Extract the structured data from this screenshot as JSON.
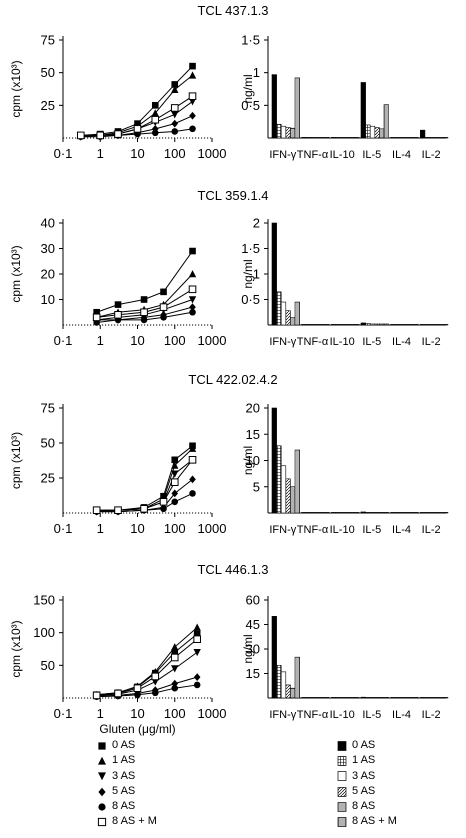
{
  "chart_data": [
    {
      "type": "line",
      "title": "TCL 437.1.3",
      "ylabel": "cpm (x10³)",
      "xlabel": "",
      "xscale": "log",
      "x": [
        0.3,
        1,
        3,
        10,
        30,
        100,
        300
      ],
      "yticks": [
        {
          "v": 25,
          "label": ""
        },
        {
          "v": 50,
          "label": "50"
        },
        {
          "v": 75,
          "label": "75"
        }
      ],
      "ylim": [
        0,
        75
      ],
      "ytick_labels": [
        "75",
        "50",
        "25"
      ],
      "xtick_labels": [
        "0·1",
        "1",
        "10",
        "100",
        "1000"
      ],
      "series": [
        {
          "name": "0 AS",
          "marker": "filled-square",
          "values": [
            2,
            3,
            5,
            11,
            25,
            41,
            55
          ]
        },
        {
          "name": "1 AS",
          "marker": "filled-triangle-up",
          "values": [
            2,
            2,
            4,
            9,
            19,
            37,
            48
          ]
        },
        {
          "name": "3 AS",
          "marker": "filled-triangle-down",
          "values": [
            2,
            2,
            3,
            7,
            12,
            18,
            28
          ]
        },
        {
          "name": "5 AS",
          "marker": "filled-diamond",
          "values": [
            1,
            2,
            2,
            4,
            7,
            11,
            17
          ]
        },
        {
          "name": "8 AS",
          "marker": "filled-circle",
          "values": [
            1,
            1,
            2,
            3,
            4,
            5,
            7
          ]
        },
        {
          "name": "8 AS + M",
          "marker": "open-square",
          "values": [
            2,
            2,
            3,
            7,
            14,
            23,
            32
          ]
        }
      ]
    },
    {
      "type": "bar",
      "title": "",
      "ylabel": "ng/ml",
      "xlabel": "",
      "ylim": [
        0,
        1.5
      ],
      "ytick_labels": [
        "1·5",
        "1",
        "0·5"
      ],
      "yticks": [
        {
          "v": 0.5,
          "label": "0·5"
        },
        {
          "v": 1,
          "label": "1"
        },
        {
          "v": 1.5,
          "label": "1·5"
        }
      ],
      "categories": [
        "IFN-γ",
        "TNF-α",
        "IL-10",
        "IL-5",
        "IL-4",
        "IL-2"
      ],
      "series": [
        {
          "name": "0 AS",
          "pattern": "solid",
          "values": [
            0.97,
            0.01,
            0.01,
            0.85,
            0.0,
            0.12
          ]
        },
        {
          "name": "1 AS",
          "pattern": "grid",
          "values": [
            0.21,
            0.01,
            0.01,
            0.2,
            0.0,
            0.0
          ]
        },
        {
          "name": "3 AS",
          "pattern": "open",
          "values": [
            0.18,
            0.0,
            0.0,
            0.18,
            0.0,
            0.0
          ]
        },
        {
          "name": "5 AS",
          "pattern": "diagonal",
          "values": [
            0.16,
            0.0,
            0.0,
            0.16,
            0.0,
            0.0
          ]
        },
        {
          "name": "8 AS",
          "pattern": "horizontal",
          "values": [
            0.15,
            0.0,
            0.0,
            0.14,
            0.0,
            0.0
          ]
        },
        {
          "name": "8 AS + M",
          "pattern": "vertical",
          "values": [
            0.92,
            0.01,
            0.0,
            0.51,
            0.0,
            0.0
          ]
        }
      ]
    },
    {
      "type": "line",
      "title": "TCL 359.1.4",
      "ylabel": "cpm (x10³)",
      "xlabel": "",
      "xscale": "log",
      "x": [
        0.8,
        3,
        15,
        50,
        300
      ],
      "yticks": [
        {
          "v": 10,
          "label": "10"
        },
        {
          "v": 20,
          "label": "20"
        },
        {
          "v": 30,
          "label": "30"
        },
        {
          "v": 40,
          "label": "40"
        }
      ],
      "ylim": [
        0,
        40
      ],
      "ytick_labels": [
        "40",
        "30",
        "20",
        "10"
      ],
      "xtick_labels": [
        "0·1",
        "1",
        "10",
        "100",
        "1000"
      ],
      "series": [
        {
          "name": "0 AS",
          "marker": "filled-square",
          "values": [
            5,
            8,
            10,
            13,
            29
          ]
        },
        {
          "name": "1 AS",
          "marker": "filled-triangle-up",
          "values": [
            3,
            5,
            6,
            8,
            20
          ]
        },
        {
          "name": "3 AS",
          "marker": "filled-triangle-down",
          "values": [
            2,
            3,
            4,
            6,
            10
          ]
        },
        {
          "name": "5 AS",
          "marker": "filled-diamond",
          "values": [
            2,
            2,
            3,
            4,
            7
          ]
        },
        {
          "name": "8 AS",
          "marker": "filled-circle",
          "values": [
            1,
            2,
            2,
            3,
            5
          ]
        },
        {
          "name": "8 AS + M",
          "marker": "open-square",
          "values": [
            3,
            4,
            5,
            7,
            14
          ]
        }
      ]
    },
    {
      "type": "bar",
      "title": "",
      "ylabel": "ng/ml",
      "xlabel": "",
      "ylim": [
        0,
        2.0
      ],
      "ytick_labels": [
        "2",
        "1·5",
        "1",
        "0·5"
      ],
      "yticks": [
        {
          "v": 0.5,
          "label": "0·5"
        },
        {
          "v": 1,
          "label": "1"
        },
        {
          "v": 1.5,
          "label": "1·5"
        },
        {
          "v": 2,
          "label": "2"
        }
      ],
      "categories": [
        "IFN-γ",
        "TNF-α",
        "IL-10",
        "IL-5",
        "IL-4",
        "IL-2"
      ],
      "series": [
        {
          "name": "0 AS",
          "pattern": "solid",
          "values": [
            2.0,
            0.01,
            0.01,
            0.04,
            0.0,
            0.0
          ]
        },
        {
          "name": "1 AS",
          "pattern": "grid",
          "values": [
            0.65,
            0.0,
            0.0,
            0.03,
            0.0,
            0.0
          ]
        },
        {
          "name": "3 AS",
          "pattern": "open",
          "values": [
            0.45,
            0.0,
            0.0,
            0.02,
            0.0,
            0.0
          ]
        },
        {
          "name": "5 AS",
          "pattern": "diagonal",
          "values": [
            0.28,
            0.0,
            0.0,
            0.02,
            0.0,
            0.0
          ]
        },
        {
          "name": "8 AS",
          "pattern": "horizontal",
          "values": [
            0.15,
            0.0,
            0.0,
            0.02,
            0.0,
            0.0
          ]
        },
        {
          "name": "8 AS + M",
          "pattern": "vertical",
          "values": [
            0.45,
            0.0,
            0.0,
            0.02,
            0.0,
            0.0
          ]
        }
      ]
    },
    {
      "type": "line",
      "title": "TCL 422.02.4.2",
      "ylabel": "cpm (x10³)",
      "xlabel": "",
      "xscale": "log",
      "x": [
        0.8,
        3,
        15,
        50,
        100,
        300
      ],
      "yticks": [
        {
          "v": 25,
          "label": "25"
        },
        {
          "v": 50,
          "label": "50"
        },
        {
          "v": 75,
          "label": "75"
        }
      ],
      "ylim": [
        0,
        75
      ],
      "ytick_labels": [
        "75",
        "50",
        "25"
      ],
      "xtick_labels": [
        "0·1",
        "1",
        "10",
        "100",
        "1000"
      ],
      "series": [
        {
          "name": "0 AS",
          "marker": "filled-square",
          "values": [
            2,
            2,
            4,
            12,
            38,
            48
          ]
        },
        {
          "name": "1 AS",
          "marker": "filled-triangle-up",
          "values": [
            2,
            2,
            3,
            10,
            34,
            46
          ]
        },
        {
          "name": "3 AS",
          "marker": "filled-triangle-down",
          "values": [
            1,
            2,
            3,
            8,
            28,
            38
          ]
        },
        {
          "name": "5 AS",
          "marker": "filled-diamond",
          "values": [
            1,
            1,
            2,
            4,
            14,
            24
          ]
        },
        {
          "name": "8 AS",
          "marker": "filled-circle",
          "values": [
            1,
            1,
            2,
            3,
            8,
            14
          ]
        },
        {
          "name": "8 AS + M",
          "marker": "open-square",
          "values": [
            2,
            2,
            3,
            8,
            22,
            38
          ]
        }
      ]
    },
    {
      "type": "bar",
      "title": "",
      "ylabel": "ng/ml",
      "xlabel": "",
      "ylim": [
        0,
        20
      ],
      "ytick_labels": [
        "20",
        "15",
        "10",
        "5"
      ],
      "yticks": [
        {
          "v": 5,
          "label": "5"
        },
        {
          "v": 10,
          "label": "10"
        },
        {
          "v": 15,
          "label": "15"
        },
        {
          "v": 20,
          "label": "20"
        }
      ],
      "categories": [
        "IFN-γ",
        "TNF-α",
        "IL-10",
        "IL-5",
        "IL-4",
        "IL-2"
      ],
      "series": [
        {
          "name": "0 AS",
          "pattern": "solid",
          "values": [
            20.0,
            0.0,
            0.0,
            0.2,
            0.0,
            0.0
          ]
        },
        {
          "name": "1 AS",
          "pattern": "grid",
          "values": [
            12.8,
            0.0,
            0.0,
            0.1,
            0.0,
            0.0
          ]
        },
        {
          "name": "3 AS",
          "pattern": "open",
          "values": [
            9.0,
            0.0,
            0.0,
            0.1,
            0.0,
            0.0
          ]
        },
        {
          "name": "5 AS",
          "pattern": "diagonal",
          "values": [
            6.5,
            0.0,
            0.0,
            0.1,
            0.0,
            0.0
          ]
        },
        {
          "name": "8 AS",
          "pattern": "horizontal",
          "values": [
            5.0,
            0.0,
            0.0,
            0.1,
            0.0,
            0.0
          ]
        },
        {
          "name": "8 AS + M",
          "pattern": "vertical",
          "values": [
            12.0,
            0.0,
            0.0,
            0.1,
            0.0,
            0.0
          ]
        }
      ]
    },
    {
      "type": "line",
      "title": "TCL 446.1.3",
      "ylabel": "cpm (x10³)",
      "xlabel": "Gluten (μg/ml)",
      "xscale": "log",
      "x": [
        0.8,
        3,
        10,
        30,
        100,
        400
      ],
      "yticks": [
        {
          "v": 50,
          "label": "50"
        },
        {
          "v": 100,
          "label": "100"
        },
        {
          "v": 150,
          "label": "150"
        }
      ],
      "ylim": [
        0,
        150
      ],
      "ytick_labels": [
        "150",
        "100",
        "50"
      ],
      "xtick_labels": [
        "0·1",
        "1",
        "10",
        "100",
        "1000"
      ],
      "series": [
        {
          "name": "0 AS",
          "marker": "filled-square",
          "values": [
            5,
            8,
            17,
            38,
            70,
            98
          ]
        },
        {
          "name": "1 AS",
          "marker": "filled-triangle-up",
          "values": [
            5,
            8,
            18,
            40,
            78,
            108
          ]
        },
        {
          "name": "3 AS",
          "marker": "filled-triangle-down",
          "values": [
            4,
            6,
            12,
            25,
            45,
            70
          ]
        },
        {
          "name": "5 AS",
          "marker": "filled-diamond",
          "values": [
            3,
            4,
            7,
            12,
            22,
            32
          ]
        },
        {
          "name": "8 AS",
          "marker": "filled-circle",
          "values": [
            2,
            3,
            5,
            8,
            15,
            20
          ]
        },
        {
          "name": "8 AS + M",
          "marker": "open-square",
          "values": [
            4,
            7,
            15,
            33,
            62,
            90
          ]
        }
      ]
    },
    {
      "type": "bar",
      "title": "",
      "ylabel": "ng/ml",
      "xlabel": "",
      "ylim": [
        0,
        60
      ],
      "ytick_labels": [
        "60",
        "45",
        "30",
        "15"
      ],
      "yticks": [
        {
          "v": 15,
          "label": "15"
        },
        {
          "v": 30,
          "label": "30"
        },
        {
          "v": 45,
          "label": "45"
        },
        {
          "v": 60,
          "label": "60"
        }
      ],
      "categories": [
        "IFN-γ",
        "TNF-α",
        "IL-10",
        "IL-5",
        "IL-4",
        "IL-2"
      ],
      "series": [
        {
          "name": "0 AS",
          "pattern": "solid",
          "values": [
            50.0,
            0.0,
            0.0,
            0.5,
            0.0,
            0.0
          ]
        },
        {
          "name": "1 AS",
          "pattern": "grid",
          "values": [
            20.0,
            0.0,
            0.0,
            0.3,
            0.0,
            0.0
          ]
        },
        {
          "name": "3 AS",
          "pattern": "open",
          "values": [
            16.0,
            0.0,
            0.0,
            0.2,
            0.0,
            0.0
          ]
        },
        {
          "name": "5 AS",
          "pattern": "diagonal",
          "values": [
            8.0,
            0.0,
            0.0,
            0.2,
            0.0,
            0.0
          ]
        },
        {
          "name": "8 AS",
          "pattern": "horizontal",
          "values": [
            6.0,
            0.0,
            0.0,
            0.2,
            0.0,
            0.0
          ]
        },
        {
          "name": "8 AS + M",
          "pattern": "vertical",
          "values": [
            25.0,
            0.0,
            0.0,
            0.3,
            0.0,
            0.0
          ]
        }
      ]
    }
  ],
  "legend_left": [
    {
      "label": "0 AS",
      "marker": "filled-square"
    },
    {
      "label": "1 AS",
      "marker": "filled-triangle-up"
    },
    {
      "label": "3 AS",
      "marker": "filled-triangle-down"
    },
    {
      "label": "5 AS",
      "marker": "filled-diamond"
    },
    {
      "label": "8 AS",
      "marker": "filled-circle"
    },
    {
      "label": "8 AS + M",
      "marker": "open-square"
    }
  ],
  "legend_right": [
    {
      "label": "0 AS",
      "pattern": "solid"
    },
    {
      "label": "1 AS",
      "pattern": "grid"
    },
    {
      "label": "3 AS",
      "pattern": "open"
    },
    {
      "label": "5 AS",
      "pattern": "diagonal"
    },
    {
      "label": "8 AS",
      "pattern": "horizontal"
    },
    {
      "label": "8 AS + M",
      "pattern": "vertical"
    }
  ]
}
